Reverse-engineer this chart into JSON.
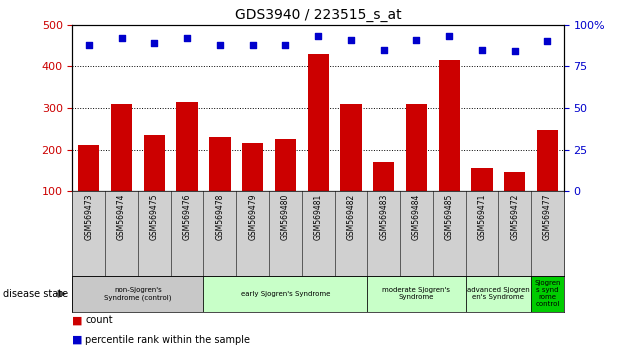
{
  "title": "GDS3940 / 223515_s_at",
  "samples": [
    "GSM569473",
    "GSM569474",
    "GSM569475",
    "GSM569476",
    "GSM569478",
    "GSM569479",
    "GSM569480",
    "GSM569481",
    "GSM569482",
    "GSM569483",
    "GSM569484",
    "GSM569485",
    "GSM569471",
    "GSM569472",
    "GSM569477"
  ],
  "counts": [
    210,
    310,
    235,
    315,
    230,
    215,
    225,
    430,
    310,
    170,
    310,
    415,
    155,
    145,
    248
  ],
  "percentiles": [
    88,
    92,
    89,
    92,
    88,
    88,
    88,
    93,
    91,
    85,
    91,
    93,
    85,
    84,
    90
  ],
  "bar_color": "#cc0000",
  "dot_color": "#0000cc",
  "ylim_left": [
    100,
    500
  ],
  "ylim_right": [
    0,
    100
  ],
  "yticks_left": [
    100,
    200,
    300,
    400,
    500
  ],
  "yticks_right": [
    0,
    25,
    50,
    75,
    100
  ],
  "group_labels": [
    "non-Sjogren's\nSyndrome (control)",
    "early Sjogren's Syndrome",
    "moderate Sjogren's\nSyndrome",
    "advanced Sjogren\nen's Syndrome",
    "Sjogren\ns synd\nrome\ncontrol"
  ],
  "group_colors": [
    "#c8c8c8",
    "#c8ffc8",
    "#c8ffc8",
    "#c8ffc8",
    "#00cc00"
  ],
  "group_borders": [
    -0.5,
    3.5,
    8.5,
    11.5,
    13.5,
    14.5
  ],
  "tick_bg_color": "#d0d0d0",
  "disease_state_label": "disease state",
  "legend_count_label": "count",
  "legend_pct_label": "percentile rank within the sample",
  "background_color": "#ffffff"
}
